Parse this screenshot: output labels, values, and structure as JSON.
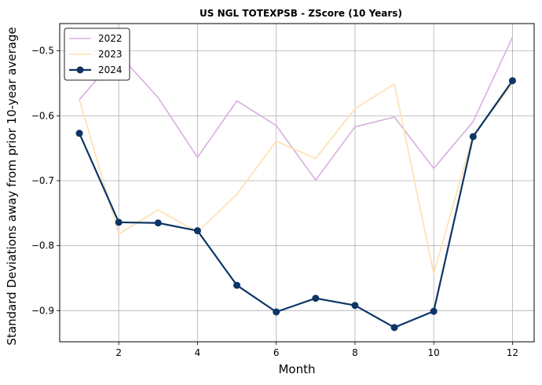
{
  "chart_data": {
    "type": "line",
    "title": "US NGL TOTEXPSB - ZScore (10 Years)",
    "xlabel": "Month",
    "ylabel": "Standard Deviations away from prior 10-year average",
    "x": [
      1,
      2,
      3,
      4,
      5,
      6,
      7,
      8,
      9,
      10,
      11,
      12
    ],
    "xlim": [
      0.5,
      12.55
    ],
    "ylim": [
      -0.948,
      -0.458
    ],
    "xticks": [
      2,
      4,
      6,
      8,
      10,
      12
    ],
    "yticks": [
      -0.9,
      -0.8,
      -0.7,
      -0.6,
      -0.5
    ],
    "ytick_labels": [
      "−0.9",
      "−0.8",
      "−0.7",
      "−0.6",
      "−0.5"
    ],
    "grid": true,
    "legend_position": "top-left",
    "series": [
      {
        "name": "2022",
        "color": "#d8aee0",
        "markers": false,
        "values": [
          -0.575,
          -0.505,
          -0.572,
          -0.664,
          -0.577,
          -0.615,
          -0.699,
          -0.617,
          -0.602,
          -0.681,
          -0.609,
          -0.479
        ]
      },
      {
        "name": "2023",
        "color": "#fde0ae",
        "markers": false,
        "values": [
          -0.575,
          -0.782,
          -0.745,
          -0.779,
          -0.721,
          -0.639,
          -0.666,
          -0.589,
          -0.551,
          -0.843,
          -0.63,
          -0.551
        ]
      },
      {
        "name": "2024",
        "color": "#0d3565",
        "markers": true,
        "values": [
          -0.627,
          -0.764,
          -0.765,
          -0.777,
          -0.861,
          -0.902,
          -0.881,
          -0.892,
          -0.926,
          -0.901,
          -0.632,
          -0.546
        ]
      }
    ]
  }
}
